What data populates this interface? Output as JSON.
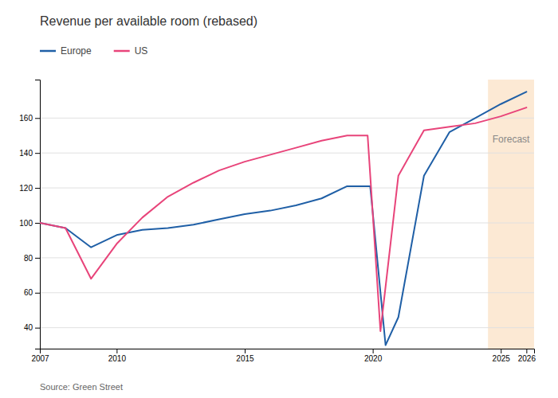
{
  "chart_data": {
    "type": "line",
    "title": "Revenue per available room (rebased)",
    "series": [
      {
        "name": "Europe",
        "color": "#1f5fa6",
        "x": [
          2007,
          2008,
          2009,
          2010,
          2011,
          2012,
          2013,
          2014,
          2015,
          2016,
          2017,
          2018,
          2019,
          2019.9,
          2020.5,
          2021,
          2022,
          2023,
          2024,
          2025,
          2026
        ],
        "values": [
          100,
          97,
          86,
          93,
          96,
          97,
          99,
          102,
          105,
          107,
          110,
          114,
          121,
          121,
          30,
          46,
          127,
          152,
          160,
          168,
          175
        ]
      },
      {
        "name": "US",
        "color": "#e8447a",
        "x": [
          2007,
          2008,
          2009,
          2010,
          2011,
          2012,
          2013,
          2014,
          2015,
          2016,
          2017,
          2018,
          2019,
          2019.8,
          2020.3,
          2021,
          2022,
          2023,
          2024,
          2025,
          2026
        ],
        "values": [
          100,
          97,
          68,
          88,
          103,
          115,
          123,
          130,
          135,
          139,
          143,
          147,
          150,
          150,
          38,
          127,
          153,
          155,
          157,
          161,
          166
        ]
      }
    ],
    "shaded_region": {
      "x": [
        2024.5,
        2026.3
      ],
      "color": "#fce9d4"
    },
    "annotations": [
      {
        "text": "Forecast",
        "x": 2025.4,
        "y": 148
      },
      {
        "text": "Source: Green Street"
      }
    ],
    "xlim": [
      2007,
      2026.3
    ],
    "xticks": [
      2007,
      2010,
      2015,
      2020,
      2025,
      2026
    ],
    "ylim": [
      28,
      182
    ],
    "yticks": [
      40,
      60,
      80,
      100,
      120,
      140,
      160
    ],
    "grid": true,
    "legend": "upper left"
  }
}
